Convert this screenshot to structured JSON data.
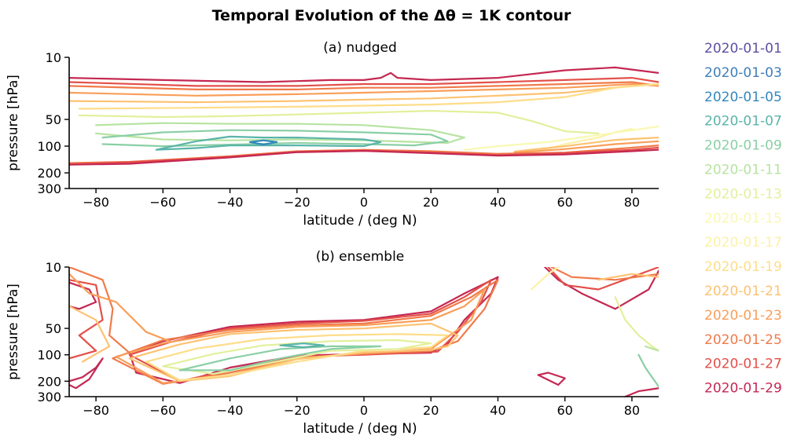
{
  "title": "Temporal Evolution of the Δθ = 1K contour",
  "legend": {
    "placement": "right",
    "entries": [
      {
        "label": "2020-01-01",
        "color": "#5e4fa2"
      },
      {
        "label": "2020-01-03",
        "color": "#3f7fb8"
      },
      {
        "label": "2020-01-05",
        "color": "#3288bd"
      },
      {
        "label": "2020-01-07",
        "color": "#5ab4a9"
      },
      {
        "label": "2020-01-09",
        "color": "#8acfa5"
      },
      {
        "label": "2020-01-11",
        "color": "#b7e3a1"
      },
      {
        "label": "2020-01-13",
        "color": "#e2f09c"
      },
      {
        "label": "2020-01-15",
        "color": "#f8f9b2"
      },
      {
        "label": "2020-01-17",
        "color": "#fdf1a6"
      },
      {
        "label": "2020-01-19",
        "color": "#fedd8a"
      },
      {
        "label": "2020-01-21",
        "color": "#fdc272"
      },
      {
        "label": "2020-01-23",
        "color": "#f99e59"
      },
      {
        "label": "2020-01-25",
        "color": "#f07a4a"
      },
      {
        "label": "2020-01-27",
        "color": "#e34f4a"
      },
      {
        "label": "2020-01-29",
        "color": "#c42852"
      }
    ]
  },
  "chart_data": [
    {
      "type": "line",
      "title": "(a) nudged",
      "xlabel": "latitude / (deg N)",
      "ylabel": "pressure [hPa]",
      "xlim": [
        -88,
        88
      ],
      "ylim": [
        300,
        10
      ],
      "yscale": "log",
      "xticks": [
        -80,
        -60,
        -40,
        -20,
        0,
        20,
        40,
        60,
        80
      ],
      "xtick_labels": [
        "−80",
        "−60",
        "−40",
        "−20",
        "0",
        "20",
        "40",
        "60",
        "80"
      ],
      "yticks": [
        10,
        50,
        100,
        200,
        300
      ],
      "ytick_labels": [
        "10",
        "50",
        "100",
        "200",
        "300"
      ],
      "grid": false,
      "series": [
        {
          "color": "#c42852",
          "x": [
            -88,
            -60,
            -30,
            -10,
            0,
            5,
            8,
            10,
            20,
            40,
            60,
            75,
            88
          ],
          "y": [
            17,
            18,
            19,
            18,
            18,
            17,
            15,
            17,
            18,
            17,
            14,
            13,
            15
          ]
        },
        {
          "color": "#e34f4a",
          "x": [
            -88,
            -50,
            -20,
            0,
            20,
            40,
            60,
            80,
            88
          ],
          "y": [
            19,
            21,
            21,
            20,
            20,
            19,
            18,
            17,
            19
          ]
        },
        {
          "color": "#f07a4a",
          "x": [
            -88,
            -50,
            -20,
            0,
            20,
            40,
            60,
            80,
            88
          ],
          "y": [
            21,
            23,
            23,
            22,
            22,
            21,
            20,
            19,
            21
          ]
        },
        {
          "color": "#f99e59",
          "x": [
            -88,
            -50,
            -20,
            0,
            20,
            40,
            60,
            80,
            88
          ],
          "y": [
            25,
            27,
            26,
            25,
            24,
            23,
            22,
            20,
            21
          ]
        },
        {
          "color": "#fdc272",
          "x": [
            -88,
            -50,
            -20,
            0,
            20,
            40,
            60,
            80,
            88
          ],
          "y": [
            31,
            32,
            31,
            30,
            29,
            27,
            25,
            21,
            20
          ]
        },
        {
          "color": "#fedd8a",
          "x": [
            -85,
            -50,
            -20,
            0,
            20,
            40,
            60,
            75,
            88
          ],
          "y": [
            38,
            37,
            36,
            35,
            34,
            32,
            28,
            22,
            20
          ]
        },
        {
          "color": "#e2f09c",
          "x": [
            -85,
            -60,
            -40,
            -20,
            0,
            20,
            40,
            50,
            60,
            70
          ],
          "y": [
            45,
            47,
            46,
            44,
            42,
            40,
            42,
            52,
            68,
            72
          ]
        },
        {
          "color": "#b7e3a1",
          "x": [
            -80,
            -60,
            -40,
            -20,
            0,
            20,
            30,
            25,
            0,
            -20,
            -40,
            -60,
            -80
          ],
          "y": [
            58,
            55,
            56,
            56,
            58,
            66,
            80,
            92,
            86,
            84,
            86,
            84,
            72
          ]
        },
        {
          "color": "#8acfa5",
          "x": [
            -78,
            -60,
            -40,
            -20,
            0,
            10,
            20,
            25,
            15,
            0,
            -20,
            -40,
            -60,
            -78
          ],
          "y": [
            80,
            70,
            66,
            67,
            70,
            72,
            74,
            88,
            98,
            95,
            92,
            96,
            100,
            95
          ]
        },
        {
          "color": "#5ab4a9",
          "x": [
            -62,
            -50,
            -40,
            -30,
            -20,
            -10,
            0,
            5,
            0,
            -20,
            -40,
            -50,
            -62
          ],
          "y": [
            110,
            88,
            78,
            80,
            80,
            82,
            84,
            90,
            100,
            98,
            98,
            105,
            110
          ]
        },
        {
          "color": "#3288bd",
          "x": [
            -34,
            -30,
            -26,
            -30,
            -34
          ],
          "y": [
            90,
            86,
            90,
            96,
            90
          ]
        },
        {
          "color": "#fdf1a6",
          "x": [
            50,
            60,
            70,
            75,
            80
          ],
          "y": [
            120,
            95,
            80,
            70,
            64
          ]
        },
        {
          "color": "#f8f9b2",
          "x": [
            30,
            40,
            55,
            70,
            88
          ],
          "y": [
            110,
            100,
            90,
            75,
            60
          ]
        },
        {
          "color": "#fdc272",
          "x": [
            45,
            60,
            75,
            88
          ],
          "y": [
            115,
            100,
            85,
            80
          ]
        },
        {
          "color": "#f99e59",
          "x": [
            45,
            60,
            75,
            88
          ],
          "y": [
            118,
            108,
            95,
            88
          ]
        },
        {
          "color": "#f07a4a",
          "x": [
            -88,
            -70,
            -40,
            -20,
            0,
            20,
            40,
            60,
            80,
            88
          ],
          "y": [
            155,
            150,
            130,
            114,
            110,
            114,
            122,
            118,
            104,
            98
          ]
        },
        {
          "color": "#e34f4a",
          "x": [
            -88,
            -70,
            -40,
            -20,
            0,
            20,
            40,
            60,
            80,
            88
          ],
          "y": [
            160,
            152,
            132,
            116,
            112,
            118,
            126,
            120,
            110,
            104
          ]
        },
        {
          "color": "#c42852",
          "x": [
            -88,
            -70,
            -40,
            -20,
            0,
            20,
            40,
            60,
            80,
            88
          ],
          "y": [
            162,
            158,
            134,
            117,
            113,
            120,
            128,
            124,
            114,
            110
          ]
        }
      ]
    },
    {
      "type": "line",
      "title": "(b) ensemble",
      "xlabel": "latitude / (deg N)",
      "ylabel": "pressure [hPa]",
      "xlim": [
        -88,
        88
      ],
      "ylim": [
        300,
        10
      ],
      "yscale": "log",
      "xticks": [
        -80,
        -60,
        -40,
        -20,
        0,
        20,
        40,
        60,
        80
      ],
      "xtick_labels": [
        "−80",
        "−60",
        "−40",
        "−20",
        "0",
        "20",
        "40",
        "60",
        "80"
      ],
      "yticks": [
        10,
        50,
        100,
        200,
        300
      ],
      "ytick_labels": [
        "10",
        "50",
        "100",
        "200",
        "300"
      ],
      "grid": false,
      "series": [
        {
          "color": "#c42852",
          "x": [
            -70,
            -60,
            -40,
            -20,
            0,
            20,
            30,
            40,
            38,
            30,
            25,
            20,
            0,
            -20,
            -40,
            -55,
            -68,
            -70
          ],
          "y": [
            95,
            70,
            48,
            42,
            40,
            32,
            20,
            13,
            20,
            40,
            75,
            95,
            98,
            102,
            140,
            210,
            160,
            95
          ]
        },
        {
          "color": "#e34f4a",
          "x": [
            -70,
            -58,
            -40,
            -20,
            0,
            20,
            30,
            38,
            35,
            28,
            22,
            0,
            -20,
            -40,
            -55,
            -70
          ],
          "y": [
            100,
            72,
            50,
            44,
            41,
            34,
            22,
            14,
            25,
            55,
            92,
            100,
            105,
            150,
            200,
            100
          ]
        },
        {
          "color": "#f07a4a",
          "x": [
            -75,
            -60,
            -40,
            -20,
            0,
            20,
            32,
            40,
            36,
            28,
            20,
            0,
            -20,
            -40,
            -60,
            -75
          ],
          "y": [
            110,
            68,
            52,
            46,
            44,
            36,
            22,
            14,
            30,
            70,
            90,
            98,
            108,
            160,
            215,
            110
          ]
        },
        {
          "color": "#f99e59",
          "x": [
            -74,
            -60,
            -40,
            -20,
            0,
            20,
            30,
            36,
            32,
            20,
            0,
            -20,
            -40,
            -60,
            -74
          ],
          "y": [
            105,
            74,
            55,
            48,
            46,
            40,
            28,
            18,
            40,
            86,
            96,
            110,
            170,
            210,
            105
          ]
        },
        {
          "color": "#fdc272",
          "x": [
            -70,
            -55,
            -40,
            -20,
            0,
            20,
            28,
            25,
            20,
            0,
            -20,
            -40,
            -55,
            -70
          ],
          "y": [
            110,
            76,
            58,
            52,
            50,
            44,
            60,
            80,
            88,
            94,
            112,
            175,
            200,
            110
          ]
        },
        {
          "color": "#fedd8a",
          "x": [
            -65,
            -50,
            -30,
            -10,
            10,
            25,
            20,
            0,
            -20,
            -40,
            -55,
            -65
          ],
          "y": [
            120,
            85,
            66,
            60,
            58,
            60,
            82,
            90,
            120,
            170,
            195,
            120
          ]
        },
        {
          "color": "#e2f09c",
          "x": [
            -60,
            -45,
            -30,
            -10,
            10,
            20,
            10,
            -10,
            -30,
            -45,
            -60
          ],
          "y": [
            135,
            98,
            78,
            70,
            68,
            74,
            86,
            90,
            128,
            165,
            135
          ]
        },
        {
          "color": "#8acfa5",
          "x": [
            -55,
            -40,
            -25,
            -10,
            5,
            -10,
            -25,
            -40,
            -55
          ],
          "y": [
            150,
            110,
            86,
            80,
            80,
            86,
            110,
            150,
            150
          ]
        },
        {
          "color": "#5ab4a9",
          "x": [
            -25,
            -18,
            -12,
            -18,
            -25
          ],
          "y": [
            78,
            74,
            78,
            82,
            78
          ]
        },
        {
          "color": "#c42852",
          "x": [
            -88,
            -82,
            -80,
            -85,
            -88
          ],
          "y": [
            15,
            18,
            25,
            30,
            28
          ]
        },
        {
          "color": "#c42852",
          "x": [
            -88,
            -84,
            -80,
            -78,
            -82,
            -86,
            -88
          ],
          "y": [
            200,
            180,
            140,
            110,
            190,
            240,
            220
          ]
        },
        {
          "color": "#e34f4a",
          "x": [
            -88,
            -80,
            -78,
            -85,
            -80,
            -88
          ],
          "y": [
            14,
            16,
            40,
            60,
            90,
            110
          ]
        },
        {
          "color": "#f07a4a",
          "x": [
            -88,
            -78,
            -75,
            -76,
            -70
          ],
          "y": [
            10,
            14,
            30,
            60,
            95
          ]
        },
        {
          "color": "#f99e59",
          "x": [
            -88,
            -82,
            -74,
            -65,
            -58
          ],
          "y": [
            12,
            20,
            25,
            55,
            70
          ]
        },
        {
          "color": "#fdc272",
          "x": [
            -88,
            -80,
            -76,
            -84
          ],
          "y": [
            28,
            40,
            80,
            120
          ]
        },
        {
          "color": "#c42852",
          "x": [
            52,
            55,
            60,
            58,
            52
          ],
          "y": [
            170,
            160,
            185,
            220,
            170
          ]
        },
        {
          "color": "#c42852",
          "x": [
            54,
            58,
            65,
            75,
            85,
            88
          ],
          "y": [
            10,
            14,
            20,
            30,
            18,
            11
          ]
        },
        {
          "color": "#e34f4a",
          "x": [
            55,
            60,
            70,
            80,
            88
          ],
          "y": [
            10,
            16,
            18,
            13,
            10
          ]
        },
        {
          "color": "#f07a4a",
          "x": [
            56,
            62,
            75,
            88
          ],
          "y": [
            10,
            13,
            14,
            12
          ]
        },
        {
          "color": "#fdf1a6",
          "x": [
            50,
            55,
            58
          ],
          "y": [
            18,
            12,
            10
          ]
        },
        {
          "color": "#fdc272",
          "x": [
            70,
            80,
            88
          ],
          "y": [
            14,
            12,
            13
          ]
        },
        {
          "color": "#e2f09c",
          "x": [
            75,
            78,
            82,
            86,
            88
          ],
          "y": [
            22,
            40,
            60,
            80,
            90
          ]
        },
        {
          "color": "#8acfa5",
          "x": [
            82,
            84,
            86,
            88
          ],
          "y": [
            100,
            140,
            180,
            230
          ]
        },
        {
          "color": "#b7e3a1",
          "x": [
            84,
            88
          ],
          "y": [
            80,
            90
          ]
        },
        {
          "color": "#c42852",
          "x": [
            78,
            82,
            88
          ],
          "y": [
            300,
            260,
            240
          ]
        }
      ]
    }
  ]
}
